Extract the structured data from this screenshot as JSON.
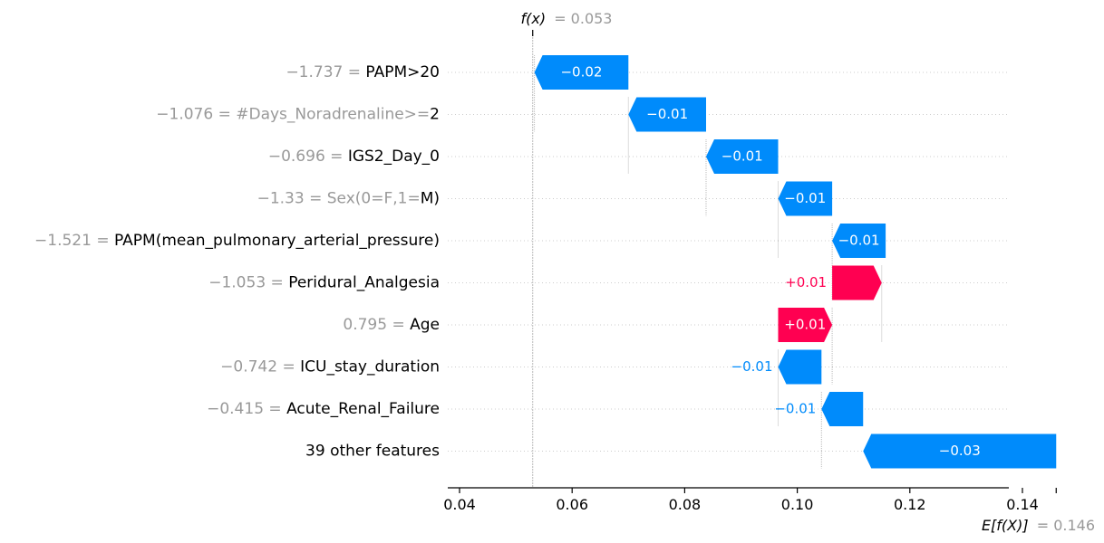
{
  "chart_data": {
    "type": "waterfall",
    "fx_label": "f(x)",
    "fx_value": "= 0.053",
    "efx_label": "E[f(X)]",
    "efx_value": "= 0.146",
    "xlim": [
      0.038,
      0.146
    ],
    "x_ticks": [
      "0.04",
      "0.06",
      "0.08",
      "0.10",
      "0.12",
      "0.14"
    ],
    "x_tick_values": [
      0.04,
      0.06,
      0.08,
      0.1,
      0.12,
      0.14
    ],
    "positive_color": "#ff0051",
    "negative_color": "#008bfb",
    "fx": 0.053,
    "base": 0.146,
    "features": [
      {
        "value": "−1.737 = ",
        "name": "PAPM>20",
        "start": 0.07,
        "end": 0.0533,
        "label": "−0.02"
      },
      {
        "value": "−1.076 = #Days_Noradrenaline>=",
        "name": "2",
        "start": 0.0838,
        "end": 0.07,
        "label": "−0.01"
      },
      {
        "value": "−0.696 = ",
        "name": "IGS2_Day_0",
        "start": 0.0966,
        "end": 0.0838,
        "label": "−0.01"
      },
      {
        "value": "−1.33 = Sex(0=F,1=",
        "name": "M)",
        "start": 0.1062,
        "end": 0.0966,
        "label": "−0.01"
      },
      {
        "value": "−1.521 = ",
        "name": "PAPM(mean_pulmonary_arterial_pressure)",
        "start": 0.1157,
        "end": 0.1062,
        "label": "−0.01"
      },
      {
        "value": "−1.053 = ",
        "name": "Peridural_Analgesia",
        "start": 0.1062,
        "end": 0.115,
        "label": "+0.01"
      },
      {
        "value": "0.795 = ",
        "name": "Age",
        "start": 0.0966,
        "end": 0.1062,
        "label": "+0.01"
      },
      {
        "value": "−0.742 = ",
        "name": "ICU_stay_duration",
        "start": 0.1043,
        "end": 0.0966,
        "label": "−0.01"
      },
      {
        "value": "−0.415 = ",
        "name": "Acute_Renal_Failure",
        "start": 0.1117,
        "end": 0.1043,
        "label": "−0.01"
      },
      {
        "value": "",
        "name": "39 other features",
        "start": 0.146,
        "end": 0.1117,
        "label": "−0.03"
      }
    ]
  }
}
